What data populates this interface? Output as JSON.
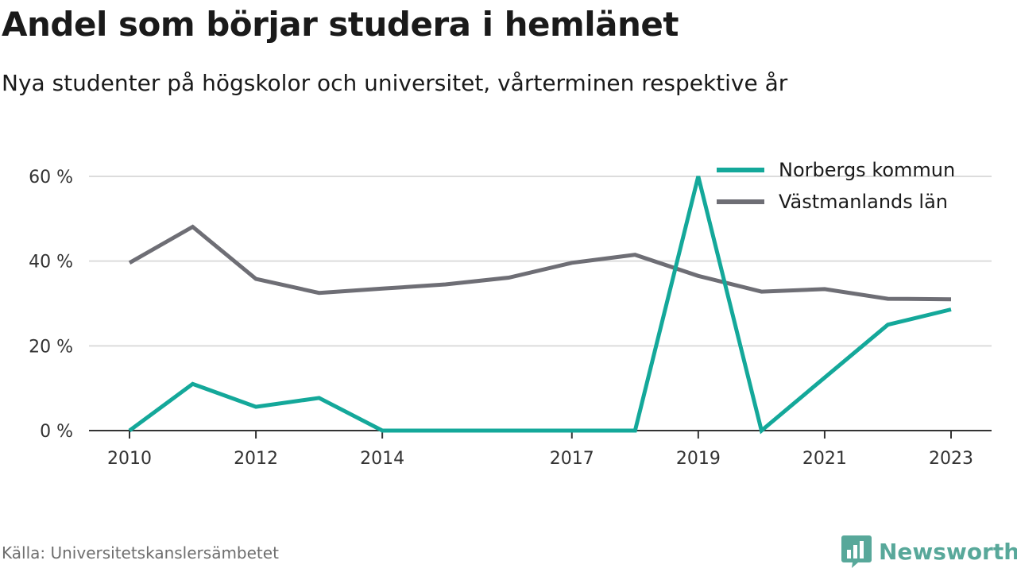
{
  "page": {
    "title": "Andel som börjar studera i hemlänet",
    "subtitle": "Nya studenter på högskolor och universitet, vårterminen respektive år",
    "source": "Källa: Universitetskanslersämbetet",
    "brand": "Newsworthy"
  },
  "colors": {
    "grid": "#dcdcdc",
    "axis": "#333333",
    "brand": "#58a89a",
    "brand_dark": "#2e8a7a"
  },
  "chart_data": {
    "type": "line",
    "x": [
      2010,
      2011,
      2012,
      2013,
      2014,
      2015,
      2016,
      2017,
      2018,
      2019,
      2020,
      2021,
      2022,
      2023
    ],
    "series": [
      {
        "name": "Norbergs kommun",
        "color": "#14a89a",
        "values": [
          0,
          11,
          5.6,
          7.7,
          0,
          0,
          0,
          0,
          0,
          60,
          0,
          12.5,
          25,
          28.6
        ]
      },
      {
        "name": "Västmanlands län",
        "color": "#6e6e75",
        "values": [
          39.6,
          48.1,
          35.8,
          32.5,
          33.5,
          34.5,
          36.1,
          39.6,
          41.5,
          36.5,
          32.8,
          33.4,
          31.1,
          31
        ]
      }
    ],
    "xticks": [
      {
        "value": 2010,
        "label": "2010"
      },
      {
        "value": 2012,
        "label": "2012"
      },
      {
        "value": 2014,
        "label": "2014"
      },
      {
        "value": 2017,
        "label": "2017"
      },
      {
        "value": 2019,
        "label": "2019"
      },
      {
        "value": 2021,
        "label": "2021"
      },
      {
        "value": 2023,
        "label": "2023"
      }
    ],
    "yticks": [
      {
        "value": 0,
        "label": "0 %"
      },
      {
        "value": 20,
        "label": "20 %"
      },
      {
        "value": 40,
        "label": "40 %"
      },
      {
        "value": 60,
        "label": "60 %"
      }
    ],
    "ylim": [
      0,
      60
    ],
    "xlim": [
      2010,
      2023
    ],
    "grid": true,
    "legend_position": "top-right"
  }
}
